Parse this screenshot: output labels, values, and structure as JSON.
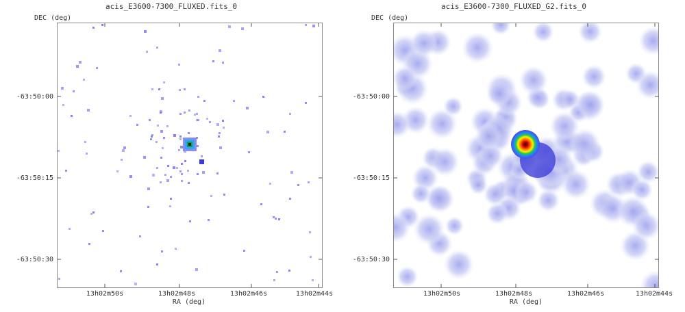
{
  "panels": [
    {
      "title": "acis_E3600-7300_FLUXED.fits_0",
      "y_axis_label": "DEC (deg)",
      "x_axis_label": "RA (deg)",
      "y_ticks": [
        "-63:50:00",
        "-63:50:15",
        "-63:50:30"
      ],
      "x_ticks": [
        "13h02m50s",
        "13h02m48s",
        "13h02m46s",
        "13h02m44s"
      ],
      "colormap": "sparse-photon-events",
      "source_color_core": "#00aa44"
    },
    {
      "title": "acis_E3600-7300_FLUXED_G2.fits_0",
      "y_axis_label": "DEC (deg)",
      "x_axis_label": "RA (deg)",
      "y_ticks": [
        "-63:50:00",
        "-63:50:15",
        "-63:50:30"
      ],
      "x_ticks": [
        "13h02m50s",
        "13h02m48s",
        "13h02m46s",
        "13h02m44s"
      ],
      "colormap": "smoothed-heatmap",
      "source_color_core": "#cc0000"
    }
  ],
  "colors": {
    "photon": "#7b7bf0",
    "smooth": "#c8cbf2",
    "frame": "#888888"
  }
}
